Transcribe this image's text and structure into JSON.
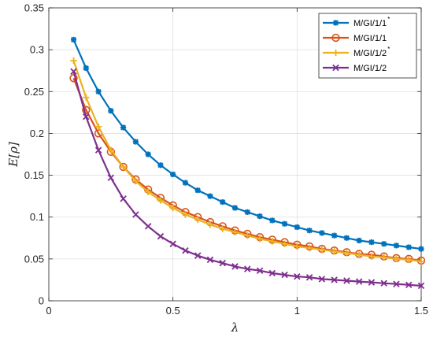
{
  "chart_data": {
    "type": "line",
    "xlabel": "λ",
    "ylabel": "E[ρ]",
    "xlim": [
      0,
      1.5
    ],
    "ylim": [
      0,
      0.35
    ],
    "xticks": [
      0,
      0.5,
      1,
      1.5
    ],
    "xtick_labels": [
      "0",
      "0.5",
      "1",
      "1.5"
    ],
    "yticks": [
      0,
      0.05,
      0.1,
      0.15,
      0.2,
      0.25,
      0.3,
      0.35
    ],
    "ytick_labels": [
      "0",
      "0.05",
      "0.1",
      "0.15",
      "0.2",
      "0.25",
      "0.3",
      "0.35"
    ],
    "grid": true,
    "legend_position": "top-right",
    "x": [
      0.1,
      0.15,
      0.2,
      0.25,
      0.3,
      0.35,
      0.4,
      0.45,
      0.5,
      0.55,
      0.6,
      0.65,
      0.7,
      0.75,
      0.8,
      0.85,
      0.9,
      0.95,
      1.0,
      1.05,
      1.1,
      1.15,
      1.2,
      1.25,
      1.3,
      1.35,
      1.4,
      1.45,
      1.5
    ],
    "series": [
      {
        "name": "M/GI/1/1",
        "superscript": "*",
        "color": "#0072BD",
        "marker": "asterisk",
        "values": [
          0.312,
          0.278,
          0.25,
          0.227,
          0.207,
          0.19,
          0.175,
          0.162,
          0.151,
          0.141,
          0.132,
          0.125,
          0.118,
          0.111,
          0.106,
          0.101,
          0.096,
          0.092,
          0.088,
          0.084,
          0.081,
          0.078,
          0.075,
          0.072,
          0.07,
          0.068,
          0.066,
          0.064,
          0.062
        ]
      },
      {
        "name": "M/GI/1/1",
        "superscript": "",
        "color": "#D95319",
        "marker": "circle",
        "values": [
          0.266,
          0.228,
          0.2,
          0.178,
          0.16,
          0.145,
          0.133,
          0.123,
          0.114,
          0.106,
          0.1,
          0.094,
          0.089,
          0.084,
          0.08,
          0.076,
          0.073,
          0.07,
          0.067,
          0.065,
          0.062,
          0.06,
          0.058,
          0.056,
          0.055,
          0.053,
          0.051,
          0.05,
          0.048
        ]
      },
      {
        "name": "M/GI/1/2",
        "superscript": "*",
        "color": "#EDB120",
        "marker": "plus",
        "values": [
          0.287,
          0.243,
          0.208,
          0.18,
          0.16,
          0.143,
          0.13,
          0.12,
          0.111,
          0.103,
          0.097,
          0.091,
          0.086,
          0.082,
          0.078,
          0.074,
          0.071,
          0.068,
          0.065,
          0.063,
          0.061,
          0.059,
          0.057,
          0.055,
          0.053,
          0.052,
          0.05,
          0.049,
          0.047
        ]
      },
      {
        "name": "M/GI/1/2",
        "superscript": "",
        "color": "#7E2F8E",
        "marker": "x",
        "values": [
          0.274,
          0.22,
          0.18,
          0.147,
          0.122,
          0.103,
          0.089,
          0.077,
          0.068,
          0.06,
          0.054,
          0.049,
          0.045,
          0.041,
          0.038,
          0.036,
          0.033,
          0.031,
          0.029,
          0.028,
          0.026,
          0.025,
          0.024,
          0.023,
          0.022,
          0.021,
          0.02,
          0.019,
          0.018
        ]
      }
    ]
  }
}
